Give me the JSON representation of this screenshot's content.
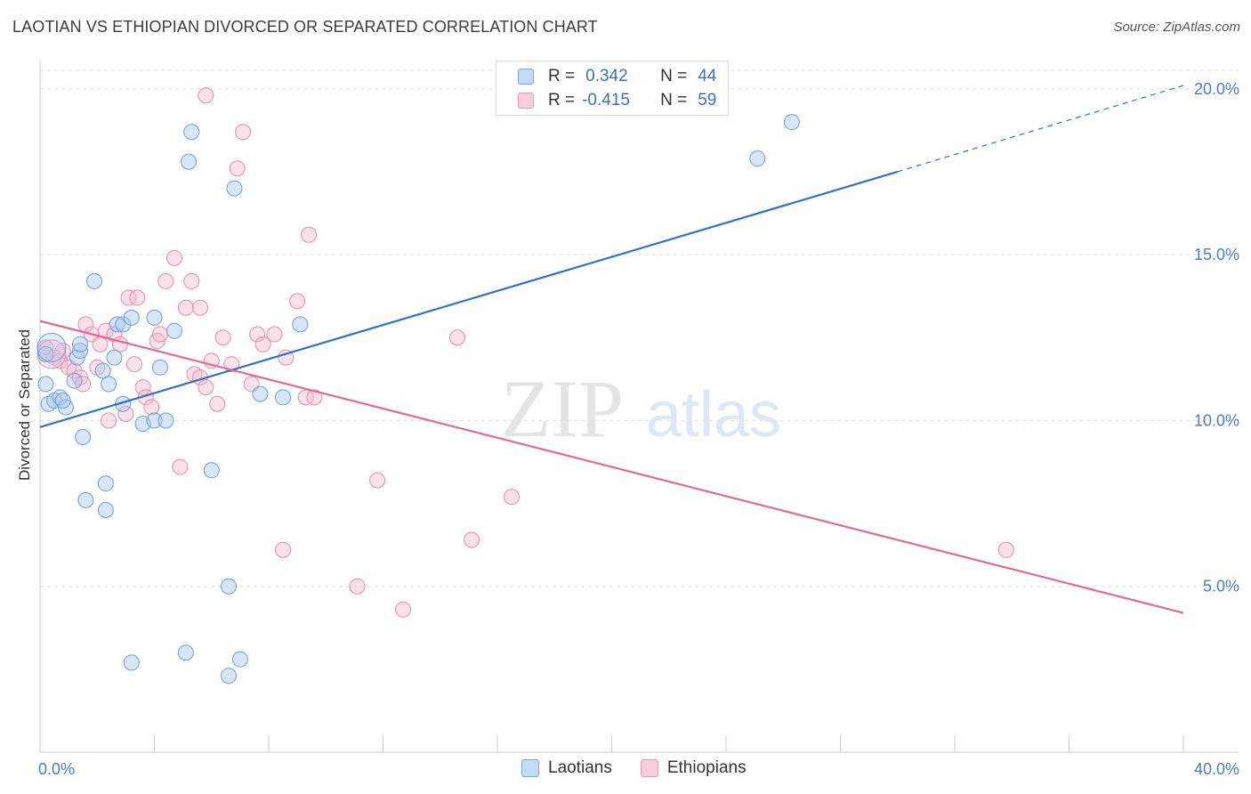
{
  "header": {
    "title": "LAOTIAN VS ETHIOPIAN DIVORCED OR SEPARATED CORRELATION CHART",
    "source": "Source: ZipAtlas.com"
  },
  "watermark": {
    "zip": "ZIP",
    "atlas": "atlas"
  },
  "legend": {
    "rows": [
      {
        "r_key": "R =",
        "r_val": "0.342",
        "n_key": "N =",
        "n_val": "44",
        "color": "#a9c8f0"
      },
      {
        "r_key": "R =",
        "r_val": "-0.415",
        "n_key": "N =",
        "n_val": "59",
        "color": "#f5b3c8"
      }
    ]
  },
  "bottom_legend": {
    "items": [
      "Laotians",
      "Ethiopians"
    ]
  },
  "colors": {
    "laotian_fill": "#a9c8f0",
    "laotian_stroke": "#6a9fdc",
    "laotian_line": "#2f72c9",
    "ethiopian_fill": "#f7bcd0",
    "ethiopian_stroke": "#e88aab",
    "ethiopian_line": "#e06a96",
    "tick_label": "#4a7cc9",
    "grid": "#dddddd"
  },
  "chart_data": {
    "type": "scatter",
    "title": "LAOTIAN VS ETHIOPIAN DIVORCED OR SEPARATED CORRELATION CHART",
    "xlabel": "",
    "ylabel": "Divorced or Separated",
    "xlim": [
      0,
      40
    ],
    "ylim": [
      0,
      20.8
    ],
    "x_tick_labels": [
      {
        "value": 0,
        "label": "0.0%"
      },
      {
        "value": 40,
        "label": "40.0%"
      }
    ],
    "y_tick_labels": [
      {
        "value": 5,
        "label": "5.0%"
      },
      {
        "value": 10,
        "label": "10.0%"
      },
      {
        "value": 15,
        "label": "15.0%"
      },
      {
        "value": 20,
        "label": "20.0%"
      }
    ],
    "grid": "horizontal dashed",
    "series": [
      {
        "name": "Laotians",
        "r": 0.342,
        "n": 44,
        "trend": {
          "x_start": 0,
          "y_start": 9.8,
          "x_end": 30,
          "y_end": 17.5,
          "dashed_to_x": 40,
          "dashed_to_y": 20.1
        },
        "points": [
          [
            0.2,
            12.0
          ],
          [
            0.2,
            11.1
          ],
          [
            0.3,
            10.5
          ],
          [
            0.5,
            10.6
          ],
          [
            0.7,
            10.7
          ],
          [
            0.9,
            10.4
          ],
          [
            0.8,
            10.6
          ],
          [
            1.2,
            11.2
          ],
          [
            1.3,
            11.9
          ],
          [
            1.4,
            12.1
          ],
          [
            1.4,
            12.3
          ],
          [
            1.5,
            9.5
          ],
          [
            1.6,
            7.6
          ],
          [
            1.9,
            14.2
          ],
          [
            2.2,
            11.5
          ],
          [
            2.3,
            8.1
          ],
          [
            2.3,
            7.3
          ],
          [
            2.4,
            11.1
          ],
          [
            2.6,
            11.9
          ],
          [
            2.7,
            12.9
          ],
          [
            2.9,
            12.9
          ],
          [
            2.9,
            10.5
          ],
          [
            3.2,
            13.1
          ],
          [
            3.2,
            2.7
          ],
          [
            3.6,
            9.9
          ],
          [
            4.0,
            13.1
          ],
          [
            4.0,
            10.0
          ],
          [
            4.2,
            11.6
          ],
          [
            4.4,
            10.0
          ],
          [
            4.7,
            12.7
          ],
          [
            5.1,
            3.0
          ],
          [
            5.2,
            17.8
          ],
          [
            5.3,
            18.7
          ],
          [
            6.0,
            8.5
          ],
          [
            6.6,
            5.0
          ],
          [
            6.6,
            2.3
          ],
          [
            6.8,
            17.0
          ],
          [
            7.0,
            2.8
          ],
          [
            7.7,
            10.8
          ],
          [
            8.5,
            10.7
          ],
          [
            9.1,
            12.9
          ],
          [
            25.1,
            17.9
          ],
          [
            26.3,
            19.0
          ],
          [
            0.4,
            12.2
          ]
        ]
      },
      {
        "name": "Ethiopians",
        "r": -0.415,
        "n": 59,
        "trend": {
          "x_start": 0,
          "y_start": 13.0,
          "x_end": 40,
          "y_end": 4.2
        },
        "points": [
          [
            0.2,
            12.2
          ],
          [
            0.5,
            11.9
          ],
          [
            0.7,
            11.8
          ],
          [
            0.8,
            12.1
          ],
          [
            1.0,
            11.6
          ],
          [
            1.2,
            11.5
          ],
          [
            1.4,
            11.3
          ],
          [
            1.5,
            11.1
          ],
          [
            1.6,
            12.9
          ],
          [
            1.8,
            12.6
          ],
          [
            2.0,
            11.6
          ],
          [
            2.1,
            12.3
          ],
          [
            2.3,
            12.7
          ],
          [
            2.4,
            10.0
          ],
          [
            2.6,
            12.6
          ],
          [
            2.8,
            12.3
          ],
          [
            3.0,
            10.2
          ],
          [
            3.1,
            13.7
          ],
          [
            3.3,
            11.7
          ],
          [
            3.4,
            13.7
          ],
          [
            3.6,
            11.0
          ],
          [
            3.7,
            10.7
          ],
          [
            3.9,
            10.4
          ],
          [
            4.1,
            12.4
          ],
          [
            4.2,
            12.6
          ],
          [
            4.4,
            14.2
          ],
          [
            4.7,
            14.9
          ],
          [
            4.9,
            8.6
          ],
          [
            5.1,
            13.4
          ],
          [
            5.3,
            14.2
          ],
          [
            5.4,
            11.4
          ],
          [
            5.6,
            11.3
          ],
          [
            5.8,
            11.0
          ],
          [
            6.0,
            11.8
          ],
          [
            6.2,
            10.5
          ],
          [
            6.4,
            12.5
          ],
          [
            6.7,
            11.7
          ],
          [
            6.9,
            17.6
          ],
          [
            7.1,
            18.7
          ],
          [
            7.4,
            11.1
          ],
          [
            7.6,
            12.6
          ],
          [
            7.8,
            12.3
          ],
          [
            8.2,
            12.6
          ],
          [
            8.5,
            6.1
          ],
          [
            8.6,
            11.9
          ],
          [
            9.0,
            13.6
          ],
          [
            9.3,
            10.7
          ],
          [
            9.4,
            15.6
          ],
          [
            9.6,
            10.7
          ],
          [
            5.8,
            19.8
          ],
          [
            11.1,
            5.0
          ],
          [
            11.8,
            8.2
          ],
          [
            12.7,
            4.3
          ],
          [
            14.6,
            12.5
          ],
          [
            15.1,
            6.4
          ],
          [
            16.5,
            7.7
          ],
          [
            33.8,
            6.1
          ],
          [
            5.6,
            13.4
          ],
          [
            0.4,
            12.0
          ]
        ]
      }
    ]
  }
}
